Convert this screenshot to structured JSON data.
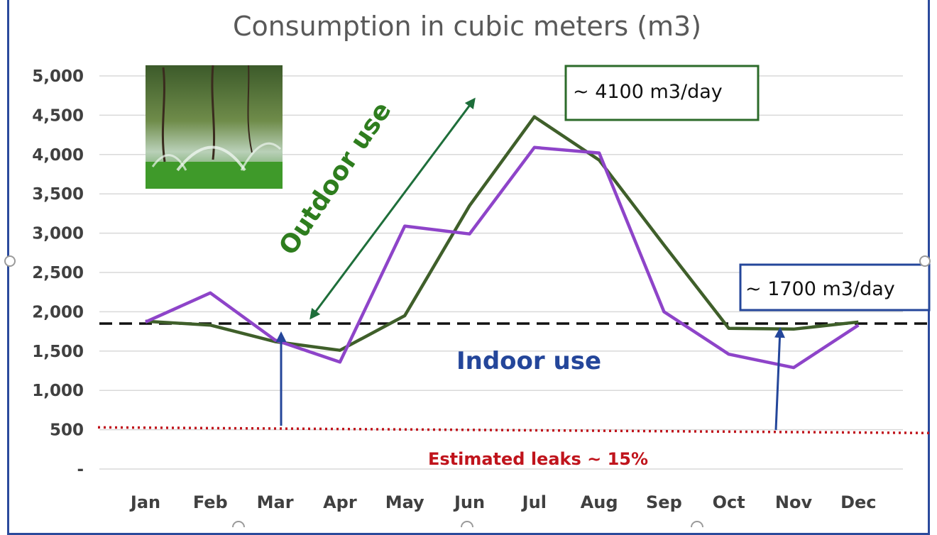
{
  "chart_data": {
    "type": "line",
    "title": "Consumption in cubic meters (m3)",
    "categories": [
      "Jan",
      "Feb",
      "Mar",
      "Apr",
      "May",
      "Jun",
      "Jul",
      "Aug",
      "Sep",
      "Oct",
      "Nov",
      "Dec"
    ],
    "ylim": [
      0,
      5000
    ],
    "yticks": [
      0,
      500,
      1000,
      1500,
      2000,
      2500,
      3000,
      3500,
      4000,
      4500,
      5000
    ],
    "ytick_labels": [
      "-",
      "500",
      "1,000",
      "1,500",
      "2,000",
      "2,500",
      "3,000",
      "3,500",
      "4,000",
      "4,500",
      "5,000"
    ],
    "grid": true,
    "legend": "none",
    "series": [
      {
        "color": "#3f5f2a",
        "values": [
          1880,
          1830,
          1620,
          1510,
          1950,
          3350,
          4480,
          3930,
          2850,
          1790,
          1780,
          1870
        ]
      },
      {
        "color": "#8e44c9",
        "values": [
          1870,
          2240,
          1640,
          1360,
          3090,
          2990,
          4090,
          4020,
          2000,
          1460,
          1290,
          1830
        ]
      }
    ],
    "reference_lines": [
      {
        "value": 1850,
        "style": "dashed",
        "color": "#111111"
      },
      {
        "value": 530,
        "style": "dotted",
        "color": "#c0141c"
      }
    ]
  },
  "annotations": {
    "peak_callout": "~ 4100 m3/day",
    "base_callout": "~ 1700 m3/day",
    "outdoor_label": "Outdoor use",
    "indoor_label": "Indoor use",
    "leaks_label": "Estimated leaks ~ 15%"
  },
  "colors": {
    "frame": "#2b4a9c",
    "outdoor_arrow": "#1e6e3a",
    "indoor_arrow": "#24469a",
    "peak_box_border": "#2c6b2a",
    "base_box_border": "#24469a"
  },
  "image": {
    "icon": "sprinkler-photo"
  }
}
